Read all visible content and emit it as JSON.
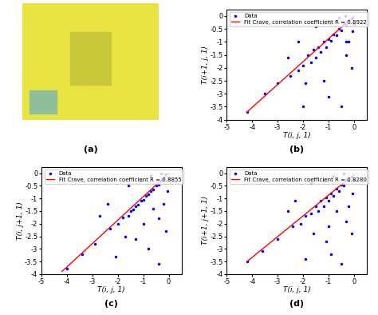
{
  "chart_data": [
    {
      "type": "image",
      "caption": "(a)"
    },
    {
      "type": "scatter",
      "caption": "(b)",
      "x_label": "T(i, j, 1)",
      "y_label": "T(i+1, j, 1)",
      "xlim": [
        -5,
        0.5
      ],
      "ylim": [
        -4,
        0.25
      ],
      "xticks": [
        -5,
        -4,
        -3,
        -2,
        -1,
        0
      ],
      "yticks": [
        -4,
        -3.5,
        -3,
        -2.5,
        -2,
        -1.5,
        -1,
        -0.5,
        0
      ],
      "legend": "upper left",
      "series": [
        {
          "name": "Data",
          "type": "scatter",
          "color": "#0000ff",
          "marker": "point",
          "x": [
            -0.1,
            -0.2,
            -0.3,
            -0.4,
            -0.5,
            -0.6,
            -0.7,
            -0.8,
            -0.9,
            -1.0,
            -1.1,
            -1.2,
            -1.3,
            -1.4,
            -1.5,
            -1.6,
            -1.7,
            -1.8,
            -2.0,
            -2.2,
            -2.5,
            -0.05,
            -0.6,
            -0.2,
            -1.0,
            -0.3,
            -1.5,
            -0.1,
            -2.2,
            -3.0,
            -3.5,
            -4.2,
            -1.2,
            -2.0,
            -1.0,
            -0.5,
            -0.3,
            -1.9,
            -2.6,
            -0.05,
            0,
            -0.35
          ],
          "values": [
            -0.1,
            -0.15,
            -0.35,
            -0.3,
            -0.55,
            -0.5,
            -0.75,
            -0.7,
            -0.95,
            -0.9,
            -1.2,
            -1.0,
            -1.4,
            -1.2,
            -1.6,
            -1.3,
            -1.8,
            -1.5,
            -1.9,
            -2.1,
            -2.3,
            -0.6,
            -0.05,
            -1.0,
            -0.2,
            -1.5,
            -0.4,
            -2.0,
            -1.0,
            -2.6,
            -3.0,
            -3.7,
            -2.5,
            -3.5,
            -3.1,
            -3.5,
            -1.0,
            -2.6,
            -1.6,
            -0.05,
            -0.3,
            0
          ]
        },
        {
          "name": "Fit Crave, correlation coefficient R = 0.8922",
          "type": "line",
          "color": "#ff0000",
          "line_style": "solid",
          "x": [
            -4.2,
            0
          ],
          "values": [
            -3.7,
            0
          ]
        }
      ]
    },
    {
      "type": "scatter",
      "caption": "(c)",
      "x_label": "T(i, j, 1)",
      "y_label": "T(i, j+1, 1)",
      "xlim": [
        -5,
        0.5
      ],
      "ylim": [
        -4,
        0.25
      ],
      "xticks": [
        -5,
        -4,
        -3,
        -2,
        -1,
        0
      ],
      "yticks": [
        -4,
        -3.5,
        -3,
        -2.5,
        -2,
        -1.5,
        -1,
        -0.5,
        0
      ],
      "legend": "upper left",
      "series": [
        {
          "name": "Data",
          "type": "scatter",
          "color": "#0000ff",
          "marker": "point",
          "x": [
            -0.1,
            -0.2,
            -0.3,
            -0.4,
            -0.5,
            -0.6,
            -0.7,
            -0.8,
            -0.9,
            -1.0,
            -1.1,
            -1.2,
            -1.3,
            -1.4,
            -1.5,
            -1.6,
            -1.8,
            -2.0,
            -2.3,
            -0.05,
            -0.7,
            -0.2,
            -1.1,
            -0.4,
            -1.6,
            -0.1,
            -2.4,
            -2.9,
            -3.4,
            -4.0,
            -1.3,
            -2.1,
            -0.8,
            -0.4,
            -1.7,
            -2.7,
            0,
            -0.3,
            -1.0,
            -0.6
          ],
          "values": [
            -0.05,
            -0.2,
            -0.3,
            -0.45,
            -0.5,
            -0.65,
            -0.7,
            -0.85,
            -0.9,
            -1.05,
            -1.1,
            -1.25,
            -1.3,
            -1.45,
            -1.5,
            -1.7,
            -1.75,
            -2.0,
            -2.2,
            -0.7,
            -0.1,
            -1.2,
            -0.3,
            -1.8,
            -0.5,
            -2.3,
            -1.2,
            -2.8,
            -3.2,
            -3.8,
            -2.6,
            -3.3,
            -3.0,
            -3.6,
            -2.5,
            -1.7,
            -0.2,
            0,
            -2.0,
            -1.4
          ]
        },
        {
          "name": "Fit Crave, correlation coefficient R = 0.8855",
          "type": "line",
          "color": "#ff0000",
          "line_style": "solid",
          "x": [
            -4.2,
            0
          ],
          "values": [
            -3.9,
            0
          ]
        }
      ]
    },
    {
      "type": "scatter",
      "caption": "(d)",
      "x_label": "T(i, j, 1)",
      "y_label": "T(i+1, j+1, 1)",
      "xlim": [
        -5,
        0.5
      ],
      "ylim": [
        -4,
        0.25
      ],
      "xticks": [
        -5,
        -4,
        -3,
        -2,
        -1,
        0
      ],
      "yticks": [
        -4,
        -3.5,
        -3,
        -2.5,
        -2,
        -1.5,
        -1,
        -0.5,
        0
      ],
      "legend": "upper left",
      "series": [
        {
          "name": "Data",
          "type": "scatter",
          "color": "#0000ff",
          "marker": "point",
          "x": [
            -0.1,
            -0.2,
            -0.3,
            -0.4,
            -0.5,
            -0.6,
            -0.7,
            -0.8,
            -0.9,
            -1.0,
            -1.1,
            -1.2,
            -1.3,
            -1.4,
            -1.5,
            -1.7,
            -1.9,
            -2.1,
            -2.4,
            -0.05,
            -0.8,
            -0.2,
            -1.2,
            -0.3,
            -1.7,
            -0.1,
            -2.3,
            -3.0,
            -3.6,
            -4.2,
            -1.1,
            -1.9,
            -0.9,
            -0.5,
            -1.6,
            -2.6,
            0,
            -0.4,
            -1.0,
            -0.7
          ],
          "values": [
            -0.15,
            -0.3,
            -0.25,
            -0.5,
            -0.45,
            -0.7,
            -0.6,
            -0.9,
            -0.8,
            -1.1,
            -0.95,
            -1.3,
            -1.1,
            -1.5,
            -1.3,
            -1.6,
            -1.7,
            -2.0,
            -2.1,
            -0.8,
            -0.1,
            -1.3,
            -0.3,
            -1.9,
            -0.4,
            -2.4,
            -1.1,
            -2.6,
            -3.1,
            -3.5,
            -2.7,
            -3.4,
            -3.2,
            -3.6,
            -2.4,
            -1.5,
            -0.25,
            0,
            -2.1,
            -1.5
          ]
        },
        {
          "name": "Fit Crave, correlation coefficient R = 0.8280",
          "type": "line",
          "color": "#ff0000",
          "line_style": "solid",
          "x": [
            -4.2,
            0
          ],
          "values": [
            -3.5,
            -0.05
          ]
        }
      ]
    }
  ]
}
